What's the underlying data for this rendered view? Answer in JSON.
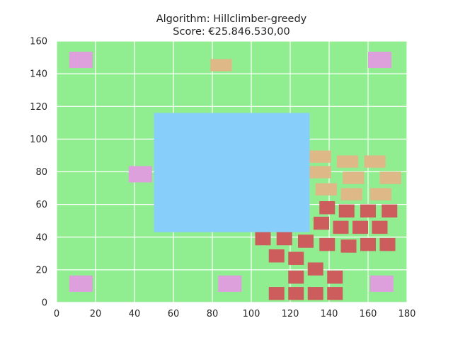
{
  "chart_data": {
    "type": "scatter",
    "title": "Algorithm: Hillclimber-greedy",
    "subtitle": "Score: €25.846.530,00",
    "xlabel": "",
    "ylabel": "",
    "xlim": [
      0,
      180
    ],
    "ylim": [
      0,
      160
    ],
    "xticks": [
      "0",
      "20",
      "40",
      "60",
      "80",
      "100",
      "120",
      "140",
      "160",
      "180"
    ],
    "yticks": [
      "0",
      "20",
      "40",
      "60",
      "80",
      "100",
      "120",
      "140",
      "160"
    ],
    "grid": true,
    "colors": {
      "background": "#90ee90",
      "grid": "#ffffff",
      "water": "#87cefa",
      "pink": "#dda0dd",
      "tan": "#deb887",
      "red": "#cd5c5c"
    },
    "water": [
      {
        "x0": 50,
        "y0": 43,
        "x1": 130,
        "y1": 116
      }
    ],
    "pink_houses": [
      {
        "x": 6.5,
        "y": 143.5,
        "w": 12,
        "h": 10
      },
      {
        "x": 160,
        "y": 143.5,
        "w": 12,
        "h": 10
      },
      {
        "x": 37,
        "y": 73.5,
        "w": 12,
        "h": 10
      },
      {
        "x": 6.5,
        "y": 6.5,
        "w": 12,
        "h": 10
      },
      {
        "x": 83,
        "y": 6.5,
        "w": 12,
        "h": 10
      },
      {
        "x": 161,
        "y": 6.5,
        "w": 12,
        "h": 10
      }
    ],
    "tan_houses": [
      {
        "x": 79,
        "y": 141.5,
        "w": 11,
        "h": 7.5
      },
      {
        "x": 130,
        "y": 85.5,
        "w": 11,
        "h": 7.5
      },
      {
        "x": 144,
        "y": 82.5,
        "w": 11,
        "h": 7.5
      },
      {
        "x": 158,
        "y": 82.5,
        "w": 11,
        "h": 7.5
      },
      {
        "x": 130,
        "y": 76,
        "w": 11,
        "h": 7.5
      },
      {
        "x": 147,
        "y": 72.5,
        "w": 11,
        "h": 7.5
      },
      {
        "x": 166,
        "y": 72.5,
        "w": 11,
        "h": 7.5
      },
      {
        "x": 133,
        "y": 65.5,
        "w": 11,
        "h": 7.5
      },
      {
        "x": 146,
        "y": 62.5,
        "w": 11,
        "h": 7.5
      },
      {
        "x": 161,
        "y": 62.5,
        "w": 11,
        "h": 7.5
      }
    ],
    "red_houses": [
      {
        "x": 135,
        "y": 54,
        "w": 8,
        "h": 8
      },
      {
        "x": 145,
        "y": 52,
        "w": 8,
        "h": 8
      },
      {
        "x": 156,
        "y": 52,
        "w": 8,
        "h": 8
      },
      {
        "x": 167,
        "y": 52,
        "w": 8,
        "h": 8
      },
      {
        "x": 132,
        "y": 44.5,
        "w": 8,
        "h": 8
      },
      {
        "x": 142,
        "y": 42,
        "w": 8,
        "h": 8
      },
      {
        "x": 152,
        "y": 42,
        "w": 8,
        "h": 8
      },
      {
        "x": 162,
        "y": 42,
        "w": 8,
        "h": 8
      },
      {
        "x": 102,
        "y": 35,
        "w": 8,
        "h": 8
      },
      {
        "x": 113,
        "y": 35,
        "w": 8,
        "h": 8
      },
      {
        "x": 124,
        "y": 33.5,
        "w": 8,
        "h": 8
      },
      {
        "x": 135,
        "y": 31.5,
        "w": 8,
        "h": 8
      },
      {
        "x": 146,
        "y": 30.5,
        "w": 8,
        "h": 8
      },
      {
        "x": 156,
        "y": 31.5,
        "w": 8,
        "h": 8
      },
      {
        "x": 166,
        "y": 31.5,
        "w": 8,
        "h": 8
      },
      {
        "x": 109,
        "y": 24.5,
        "w": 8,
        "h": 8
      },
      {
        "x": 119,
        "y": 23,
        "w": 8,
        "h": 8
      },
      {
        "x": 129,
        "y": 16.5,
        "w": 8,
        "h": 8
      },
      {
        "x": 119,
        "y": 11.5,
        "w": 8,
        "h": 8
      },
      {
        "x": 139,
        "y": 11.5,
        "w": 8,
        "h": 8
      },
      {
        "x": 109,
        "y": 1.5,
        "w": 8,
        "h": 8
      },
      {
        "x": 119,
        "y": 1.5,
        "w": 8,
        "h": 8
      },
      {
        "x": 129,
        "y": 1.5,
        "w": 8,
        "h": 8
      },
      {
        "x": 139,
        "y": 1.5,
        "w": 8,
        "h": 8
      }
    ]
  }
}
